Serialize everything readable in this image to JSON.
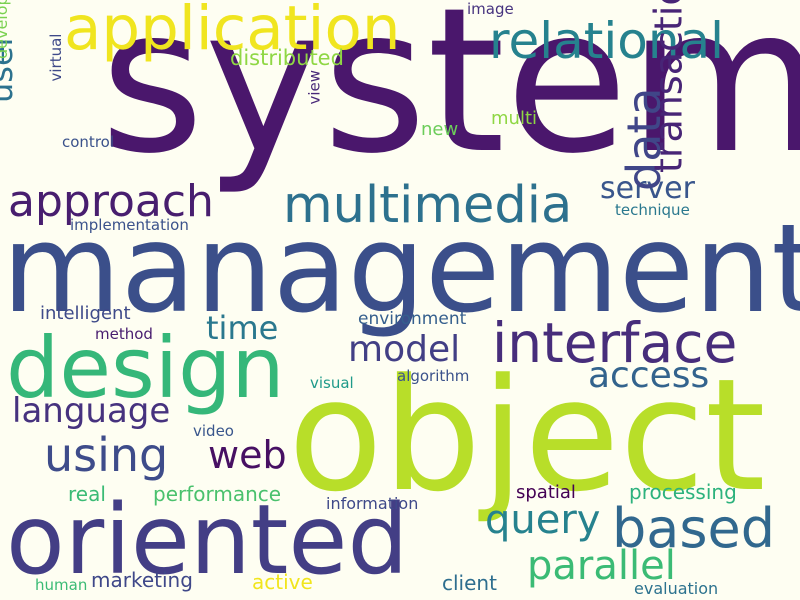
{
  "background": "#fefef2",
  "words": [
    {
      "id": "system",
      "text": "system",
      "color": "#4a176c"
    },
    {
      "id": "management",
      "text": "management",
      "color": "#3b4f8a"
    },
    {
      "id": "object",
      "text": "object",
      "color": "#b8de29"
    },
    {
      "id": "oriented",
      "text": "oriented",
      "color": "#433e85"
    },
    {
      "id": "design",
      "text": "design",
      "color": "#35b779"
    },
    {
      "id": "application",
      "text": "application",
      "color": "#f0e51f"
    },
    {
      "id": "interface",
      "text": "interface",
      "color": "#472d7b"
    },
    {
      "id": "relational",
      "text": "relational",
      "color": "#26828e"
    },
    {
      "id": "multimedia",
      "text": "multimedia",
      "color": "#2d718e"
    },
    {
      "id": "approach",
      "text": "approach",
      "color": "#481e6f"
    },
    {
      "id": "based",
      "text": "based",
      "color": "#31688e"
    },
    {
      "id": "data",
      "text": "data",
      "color": "#404688"
    },
    {
      "id": "transaction",
      "text": "transaction",
      "color": "#482576"
    },
    {
      "id": "query",
      "text": "query",
      "color": "#26828e"
    },
    {
      "id": "parallel",
      "text": "parallel",
      "color": "#3bbb75"
    },
    {
      "id": "using",
      "text": "using",
      "color": "#3e4c8a"
    },
    {
      "id": "user",
      "text": "user",
      "color": "#2c728e"
    },
    {
      "id": "access",
      "text": "access",
      "color": "#33638d"
    },
    {
      "id": "language",
      "text": "language",
      "color": "#46327e"
    },
    {
      "id": "model",
      "text": "model",
      "color": "#423f85"
    },
    {
      "id": "web",
      "text": "web",
      "color": "#471063"
    },
    {
      "id": "time",
      "text": "time",
      "color": "#2a788e"
    },
    {
      "id": "server",
      "text": "server",
      "color": "#39568c"
    },
    {
      "id": "distributed",
      "text": "distributed",
      "color": "#8fd744"
    },
    {
      "id": "performance",
      "text": "performance",
      "color": "#4ac16d"
    },
    {
      "id": "processing",
      "text": "processing",
      "color": "#2db27d"
    },
    {
      "id": "intelligent",
      "text": "intelligent",
      "color": "#3e4a89"
    },
    {
      "id": "environment",
      "text": "environment",
      "color": "#355f8d"
    },
    {
      "id": "marketing",
      "text": "marketing",
      "color": "#3f4889"
    },
    {
      "id": "client",
      "text": "client",
      "color": "#2e6e8e"
    },
    {
      "id": "active",
      "text": "active",
      "color": "#f1e51d"
    },
    {
      "id": "real",
      "text": "real",
      "color": "#3bbb75"
    },
    {
      "id": "spatial",
      "text": "spatial",
      "color": "#440154"
    },
    {
      "id": "development",
      "text": "development",
      "color": "#7ad151"
    },
    {
      "id": "multi",
      "text": "multi",
      "color": "#8fd744"
    },
    {
      "id": "new",
      "text": "new",
      "color": "#6ccd5a"
    },
    {
      "id": "information",
      "text": "information",
      "color": "#3e4989"
    },
    {
      "id": "algorithm",
      "text": "algorithm",
      "color": "#3b528b"
    },
    {
      "id": "visual",
      "text": "visual",
      "color": "#1f9a8a"
    },
    {
      "id": "technique",
      "text": "technique",
      "color": "#2a788e"
    },
    {
      "id": "implementation",
      "text": "implementation",
      "color": "#3b528b"
    },
    {
      "id": "control",
      "text": "control",
      "color": "#3b528b"
    },
    {
      "id": "virtual",
      "text": "virtual",
      "color": "#3e4989"
    },
    {
      "id": "view",
      "text": "view",
      "color": "#482878"
    },
    {
      "id": "image",
      "text": "image",
      "color": "#46337f"
    },
    {
      "id": "method",
      "text": "method",
      "color": "#481d6f"
    },
    {
      "id": "video",
      "text": "video",
      "color": "#39568c"
    },
    {
      "id": "human",
      "text": "human",
      "color": "#3bbb75"
    },
    {
      "id": "evaluation",
      "text": "evaluation",
      "color": "#2c728e"
    }
  ]
}
